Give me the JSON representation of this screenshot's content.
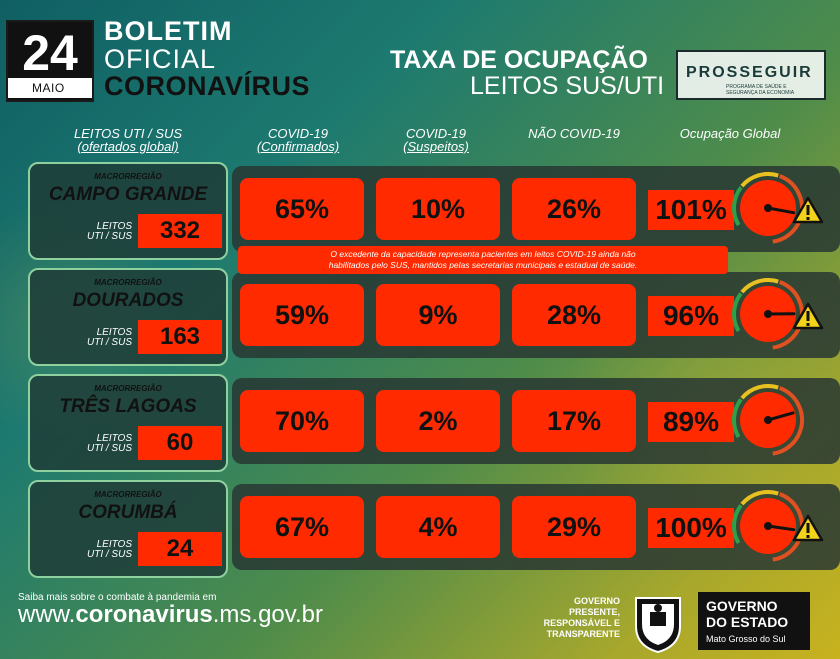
{
  "header": {
    "day": "24",
    "month": "MAIO",
    "title_line1": "BOLETIM",
    "title_line2": "OFICIAL",
    "title_line3": "CORONAVÍRUS",
    "rate_line1": "TAXA DE OCUPAÇÃO",
    "rate_line2": "LEITOS SUS/UTI",
    "prosseguir": "PROSSEGUIR",
    "prosseguir_sub": "PROGRAMA DE SAÚDE E SEGURANÇA DA ECONOMIA"
  },
  "columns": {
    "c1_line1": "LEITOS UTI / SUS",
    "c1_line2": "(ofertados global)",
    "c2_line1": "COVID-19",
    "c2_line2": "(Confirmados)",
    "c3_line1": "COVID-19",
    "c3_line2": "(Suspeitos)",
    "c4_line1": "NÃO COVID-19",
    "c5_line1": "Ocupação Global"
  },
  "regions": [
    {
      "label": "MACRORREGIÃO",
      "name": "CAMPO GRANDE",
      "leitos_label1": "LEITOS",
      "leitos_label2": "UTI / SUS",
      "leitos": "332",
      "confirmados": "65%",
      "suspeitos": "10%",
      "nao_covid": "26%",
      "global": "101%",
      "global_value": 101,
      "warning": true
    },
    {
      "label": "MACRORREGIÃO",
      "name": "DOURADOS",
      "leitos_label1": "LEITOS",
      "leitos_label2": "UTI / SUS",
      "leitos": "163",
      "confirmados": "59%",
      "suspeitos": "9%",
      "nao_covid": "28%",
      "global": "96%",
      "global_value": 96,
      "warning": true
    },
    {
      "label": "MACRORREGIÃO",
      "name": "TRÊS LAGOAS",
      "leitos_label1": "LEITOS",
      "leitos_label2": "UTI / SUS",
      "leitos": "60",
      "confirmados": "70%",
      "suspeitos": "2%",
      "nao_covid": "17%",
      "global": "89%",
      "global_value": 89,
      "warning": false
    },
    {
      "label": "MACRORREGIÃO",
      "name": "CORUMBÁ",
      "leitos_label1": "LEITOS",
      "leitos_label2": "UTI / SUS",
      "leitos": "24",
      "confirmados": "67%",
      "suspeitos": "4%",
      "nao_covid": "29%",
      "global": "100%",
      "global_value": 100,
      "warning": true
    }
  ],
  "note_line1": "O excedente da capacidade representa pacientes em leitos COVID-19 ainda não",
  "note_line2": "habilitados pelo SUS, mantidos pelas secretarias municipais e estadual de saúde.",
  "footer": {
    "info": "Saiba mais sobre o combate à pandemia em",
    "url_prefix": "www.",
    "url_bold": "coronavirus",
    "url_suffix": ".ms.gov.br",
    "slogan1": "GOVERNO",
    "slogan2": "PRESENTE,",
    "slogan3": "RESPONSÁVEL E",
    "slogan4": "TRANSPARENTE",
    "gov1": "GOVERNO",
    "gov2": "DO ESTADO",
    "gov3": "Mato Grosso do Sul"
  },
  "colors": {
    "accent_red": "#ff2a00",
    "card_border": "#8fd19e"
  }
}
